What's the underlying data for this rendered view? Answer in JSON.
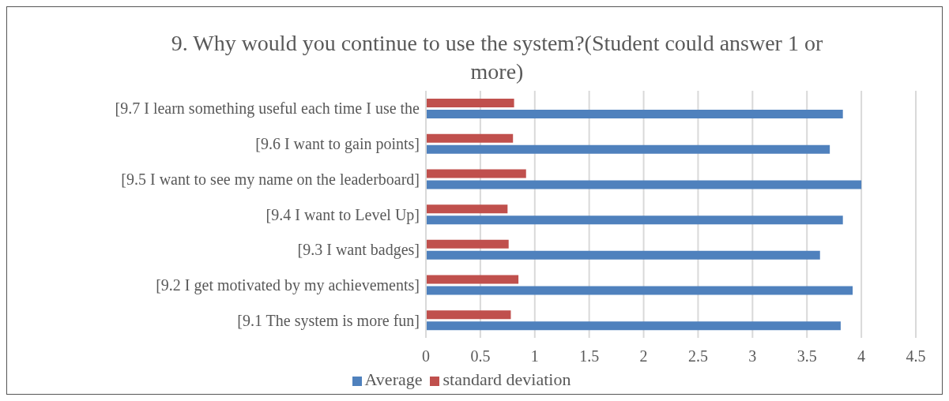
{
  "chart_data": {
    "type": "bar",
    "orientation": "horizontal",
    "title": "9. Why would you continue to use the system?(Student could answer 1 or more)",
    "categories": [
      "[9.7 I learn something useful each time I use the",
      "[9.6 I want to gain points]",
      "[9.5 I want to see my name on the leaderboard]",
      "[9.4 I want to Level Up]",
      "[9.3 I want badges]",
      "[9.2 I get  motivated by  my achievements]",
      "[9.1 The system is more fun]"
    ],
    "series": [
      {
        "name": "standard deviation",
        "color": "#c0504d",
        "values": [
          0.81,
          0.8,
          0.92,
          0.75,
          0.76,
          0.85,
          0.78
        ]
      },
      {
        "name": "Average",
        "color": "#4f81bd",
        "values": [
          3.83,
          3.71,
          4.0,
          3.83,
          3.62,
          3.92,
          3.81
        ]
      }
    ],
    "xlim": [
      0,
      4.5
    ],
    "xticks": [
      0,
      0.5,
      1,
      1.5,
      2,
      2.5,
      3,
      3.5,
      4,
      4.5
    ],
    "grid": "x",
    "legend": "bottom"
  }
}
